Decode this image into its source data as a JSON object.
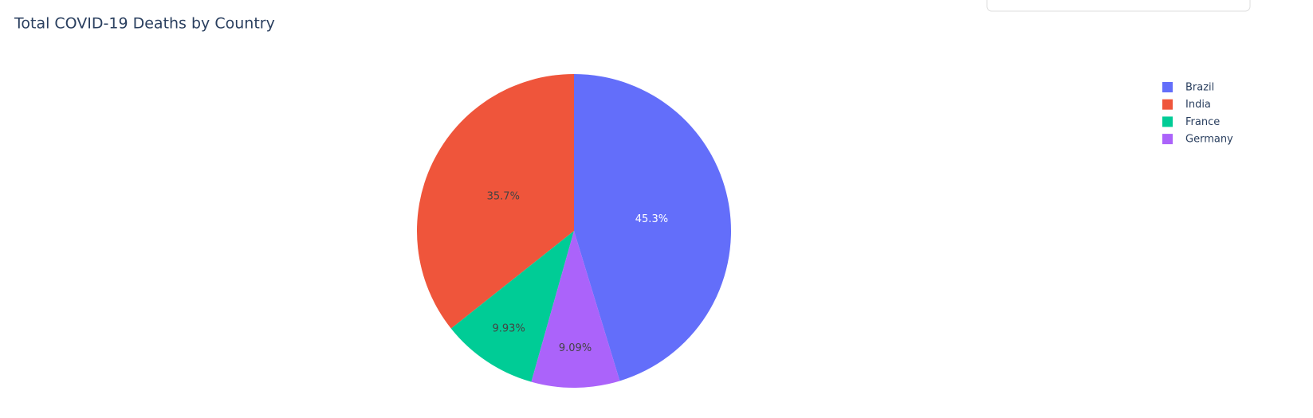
{
  "chart_data": {
    "type": "pie",
    "title": "Total COVID-19 Deaths by Country",
    "categories": [
      "Brazil",
      "India",
      "France",
      "Germany"
    ],
    "values": [
      45.3,
      35.7,
      9.93,
      9.09
    ],
    "value_labels": [
      "45.3%",
      "35.7%",
      "9.93%",
      "9.09%"
    ],
    "colors": [
      "#636efa",
      "#ef553b",
      "#00cc96",
      "#ab63fa"
    ],
    "legend": "top-right"
  }
}
